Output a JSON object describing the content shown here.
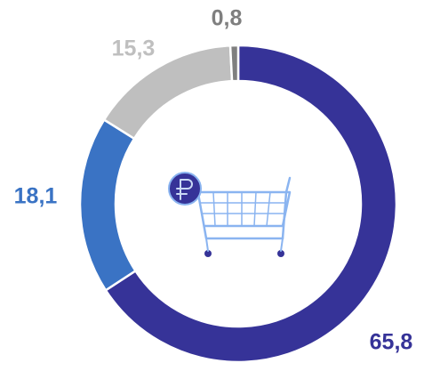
{
  "chart_data": {
    "type": "donut",
    "categories": [
      null,
      null,
      null,
      null
    ],
    "values": [
      65.8,
      18.1,
      15.3,
      0.8
    ],
    "value_labels": [
      "65,8",
      "18,1",
      "15,3",
      "0,8"
    ],
    "colors": [
      "#363398",
      "#3a73c4",
      "#bfbfbf",
      "#7f7f7f"
    ]
  }
}
